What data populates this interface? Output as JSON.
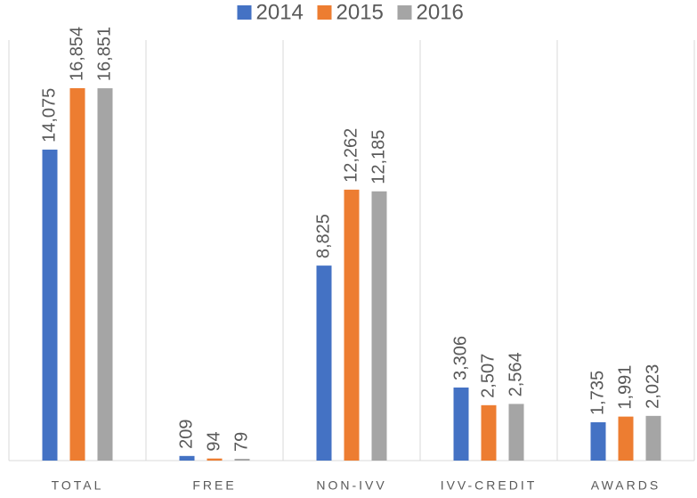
{
  "chart_data": {
    "type": "bar",
    "categories": [
      "TOTAL",
      "FREE",
      "NON-IVV",
      "IVV-CREDIT",
      "AWARDS"
    ],
    "series": [
      {
        "name": "2014",
        "color": "#4472c4",
        "values": [
          14075,
          209,
          8825,
          3306,
          1735
        ],
        "value_labels": [
          "14,075",
          "209",
          "8,825",
          "3,306",
          "1,735"
        ]
      },
      {
        "name": "2015",
        "color": "#ed7d31",
        "values": [
          16854,
          94,
          12262,
          2507,
          1991
        ],
        "value_labels": [
          "16,854",
          "94",
          "12,262",
          "2,507",
          "1,991"
        ]
      },
      {
        "name": "2016",
        "color": "#a5a5a5",
        "values": [
          16851,
          79,
          12185,
          2564,
          2023
        ],
        "value_labels": [
          "16,851",
          "79",
          "12,185",
          "2,564",
          "2,023"
        ]
      }
    ],
    "legend": "top"
  }
}
